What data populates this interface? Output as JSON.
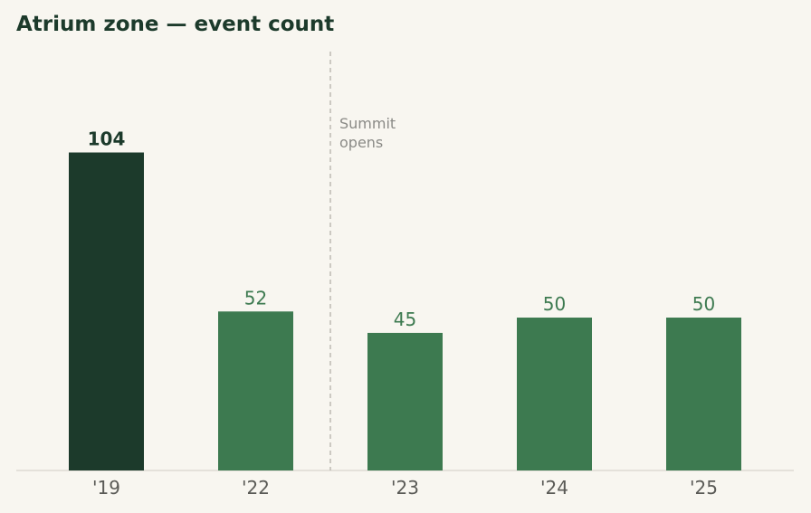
{
  "chart_data": {
    "type": "bar",
    "title": "Atrium zone — event count",
    "categories": [
      "'19",
      "'22",
      "'23",
      "'24",
      "'25"
    ],
    "values": [
      104,
      52,
      45,
      50,
      50
    ],
    "colors": [
      "#1c3a2b",
      "#3d7a50",
      "#3d7a50",
      "#3d7a50",
      "#3d7a50"
    ],
    "ylim": [
      0,
      137
    ],
    "annotation": "Summit opens"
  }
}
